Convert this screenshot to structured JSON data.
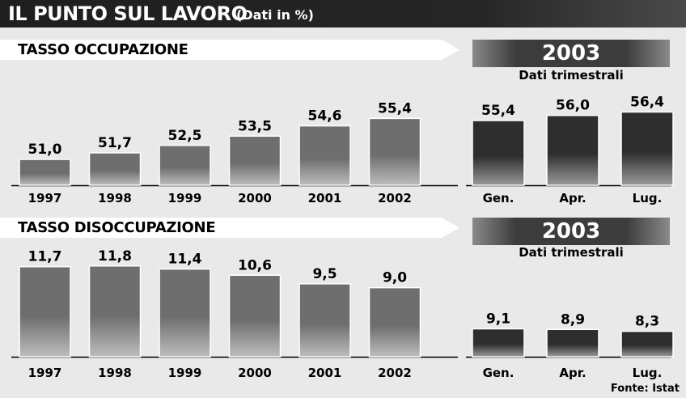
{
  "header": {
    "title": "IL PUNTO SUL LAVORO",
    "subtitle": "(Dati in %)"
  },
  "source": "Fonte: Istat",
  "colors": {
    "annual_bar": "#6f6f6f",
    "quarter_bar": "#303030"
  },
  "chart_data": [
    {
      "type": "bar",
      "title": "TASSO OCCUPAZIONE",
      "categories": [
        "1997",
        "1998",
        "1999",
        "2000",
        "2001",
        "2002"
      ],
      "values": [
        51.0,
        51.7,
        52.5,
        53.5,
        54.6,
        55.4
      ],
      "labels": [
        "51,0",
        "51,7",
        "52,5",
        "53,5",
        "54,6",
        "55,4"
      ]
    },
    {
      "type": "bar",
      "title": "2003",
      "subtitle": "Dati trimestrali",
      "categories": [
        "Gen.",
        "Apr.",
        "Lug."
      ],
      "values": [
        55.4,
        56.0,
        56.4
      ],
      "labels": [
        "55,4",
        "56,0",
        "56,4"
      ]
    },
    {
      "type": "bar",
      "title": "TASSO DISOCCUPAZIONE",
      "categories": [
        "1997",
        "1998",
        "1999",
        "2000",
        "2001",
        "2002"
      ],
      "values": [
        11.7,
        11.8,
        11.4,
        10.6,
        9.5,
        9.0
      ],
      "labels": [
        "11,7",
        "11,8",
        "11,4",
        "10,6",
        "9,5",
        "9,0"
      ]
    },
    {
      "type": "bar",
      "title": "2003",
      "subtitle": "Dati trimestrali",
      "categories": [
        "Gen.",
        "Apr.",
        "Lug."
      ],
      "values": [
        9.1,
        8.9,
        8.3
      ],
      "labels": [
        "9,1",
        "8,9",
        "8,3"
      ]
    }
  ]
}
